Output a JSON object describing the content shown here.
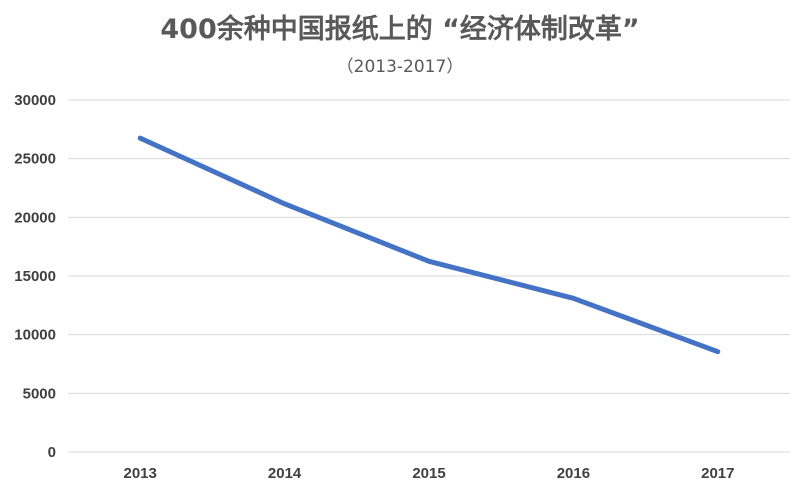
{
  "chart_data": {
    "type": "line",
    "title": "400余种中国报纸上的 “经济体制改革”",
    "subtitle": "（2013-2017）",
    "xlabel": "",
    "ylabel": "",
    "categories": [
      "2013",
      "2014",
      "2015",
      "2016",
      "2017"
    ],
    "series": [
      {
        "name": "经济体制改革",
        "values": [
          26750,
          21150,
          16250,
          13100,
          8550
        ]
      }
    ],
    "ylim": [
      0,
      30000
    ],
    "yticks": [
      0,
      5000,
      10000,
      15000,
      20000,
      25000,
      30000
    ],
    "ytick_labels": [
      "0",
      "5000",
      "10000",
      "15000",
      "20000",
      "25000",
      "30000"
    ],
    "grid": true,
    "legend": "none",
    "colors": {
      "series": "#4472c4",
      "grid": "#d9d9d9",
      "title": "#595959",
      "tick": "#404040"
    }
  }
}
